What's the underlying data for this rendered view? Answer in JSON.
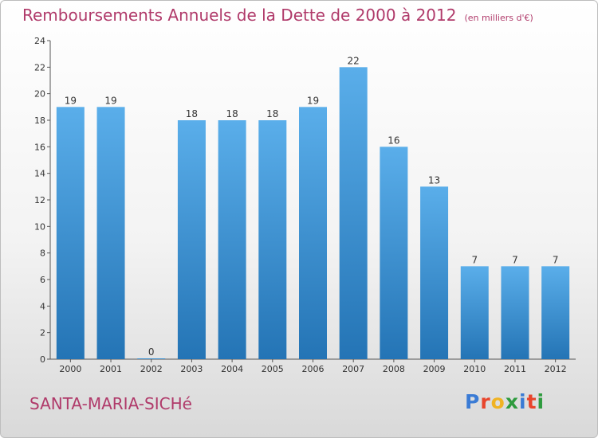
{
  "header": {
    "title": "Remboursements Annuels de la Dette de 2000 à 2012",
    "unit": "(en milliers d'€)"
  },
  "footer": {
    "commune": "SANTA-MARIA-SICHé",
    "logo": [
      "P",
      "r",
      "o",
      "x",
      "i",
      "t",
      "i"
    ]
  },
  "colors": {
    "title": "#b03a6a",
    "bar_light": "#5aaeea",
    "bar_dark": "#2474b5",
    "logo": [
      "#3a7bd5",
      "#e8452c",
      "#f0b323",
      "#2e9b3e",
      "#3a7bd5",
      "#e8452c",
      "#2e9b3e"
    ]
  },
  "chart_data": {
    "type": "bar",
    "title": "Remboursements Annuels de la Dette de 2000 à 2012",
    "categories": [
      "2000",
      "2001",
      "2002",
      "2003",
      "2004",
      "2005",
      "2006",
      "2007",
      "2008",
      "2009",
      "2010",
      "2011",
      "2012"
    ],
    "values": [
      19,
      19,
      0,
      18,
      18,
      18,
      19,
      22,
      16,
      13,
      7,
      7,
      7
    ],
    "ylim": [
      0,
      24
    ],
    "yticks": [
      0,
      2,
      4,
      6,
      8,
      10,
      12,
      14,
      16,
      18,
      20,
      22,
      24
    ],
    "grid": false
  }
}
